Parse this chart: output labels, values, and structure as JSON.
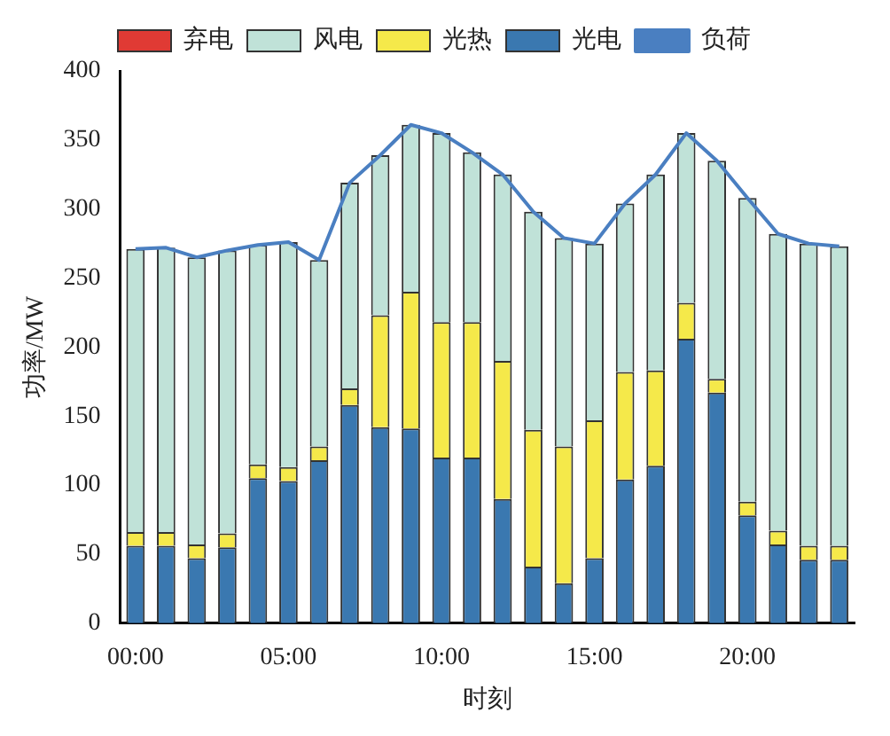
{
  "chart_data": {
    "type": "bar",
    "stacked": true,
    "xlabel": "时刻",
    "ylabel": "功率/MW",
    "categories": [
      "00:00",
      null,
      null,
      null,
      null,
      "05:00",
      null,
      null,
      null,
      null,
      "10:00",
      null,
      null,
      null,
      null,
      "15:00",
      null,
      null,
      null,
      null,
      "20:00",
      null,
      null,
      null
    ],
    "series": [
      {
        "name": "光电",
        "color": "#3a78b0",
        "values": [
          56,
          56,
          47,
          55,
          105,
          103,
          118,
          158,
          142,
          141,
          120,
          120,
          90,
          41,
          29,
          47,
          104,
          114,
          206,
          167,
          78,
          57,
          46,
          46
        ]
      },
      {
        "name": "光热",
        "color": "#f5e94a",
        "values": [
          10,
          10,
          10,
          10,
          10,
          10,
          10,
          12,
          81,
          99,
          98,
          98,
          100,
          99,
          99,
          100,
          78,
          69,
          26,
          10,
          10,
          10,
          10,
          10
        ]
      },
      {
        "name": "风电",
        "color": "#c0e2d8",
        "values": [
          205,
          206,
          208,
          205,
          159,
          163,
          135,
          149,
          116,
          121,
          137,
          123,
          135,
          158,
          151,
          128,
          122,
          142,
          123,
          158,
          220,
          215,
          219,
          217
        ]
      },
      {
        "name": "弃电",
        "color": "#e03a34",
        "values": [
          0,
          0,
          0,
          0,
          0,
          0,
          0,
          0,
          0,
          0,
          0,
          0,
          0,
          0,
          0,
          0,
          0,
          0,
          0,
          0,
          0,
          0,
          0,
          0
        ]
      },
      {
        "name": "负荷",
        "type": "line",
        "color": "#4a7fc1",
        "marker": "none",
        "values": [
          271,
          272,
          265,
          270,
          274,
          276,
          263,
          319,
          339,
          361,
          355,
          341,
          325,
          298,
          279,
          275,
          304,
          325,
          355,
          335,
          308,
          282,
          275,
          273
        ]
      }
    ],
    "ylim": [
      0,
      400
    ],
    "yticks": [
      0,
      50,
      100,
      150,
      200,
      250,
      300,
      350,
      400
    ],
    "grid": false,
    "legend": "top"
  }
}
